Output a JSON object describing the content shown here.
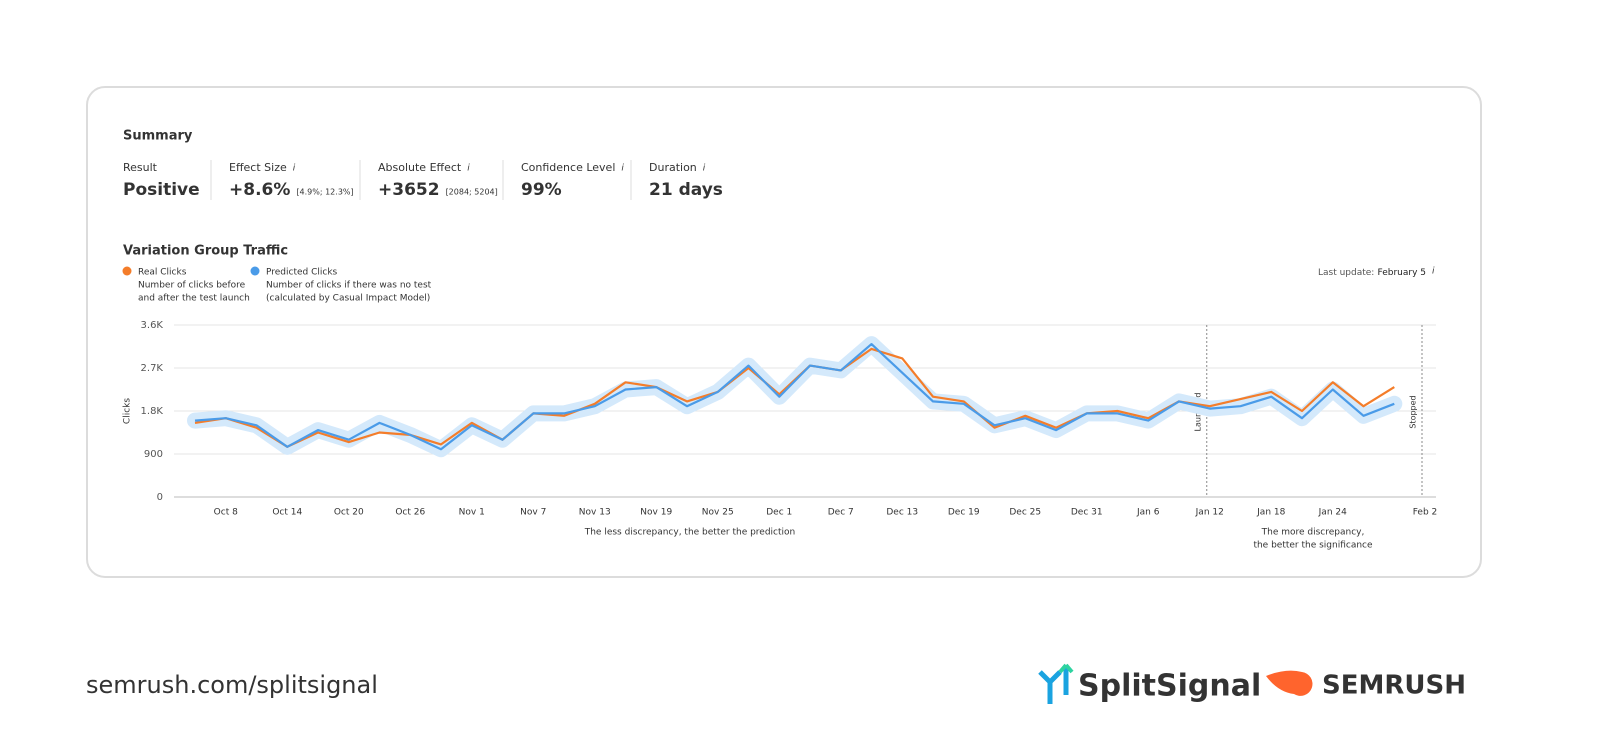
{
  "summary": {
    "title": "Summary",
    "metrics": [
      {
        "label": "Result",
        "value": "Positive"
      },
      {
        "label": "Effect Size",
        "value": "+8.6%",
        "range": "[4.9%; 12.3%]"
      },
      {
        "label": "Absolute Effect",
        "value": "+3652",
        "range": "[2084; 5204]"
      },
      {
        "label": "Confidence Level",
        "value": "99%"
      },
      {
        "label": "Duration",
        "value": "21 days"
      }
    ]
  },
  "last_update": {
    "label": "Last update:",
    "value": "February 5"
  },
  "chart_data": {
    "type": "line",
    "title": "Variation Group Traffic",
    "y_label": "Clicks",
    "categories": [
      null,
      "Oct 8",
      null,
      "Oct 14",
      null,
      "Oct 20",
      null,
      "Oct 26",
      null,
      "Nov 1",
      null,
      "Nov 7",
      null,
      "Nov 13",
      null,
      "Nov 19",
      null,
      "Nov 25",
      null,
      "Dec 1",
      null,
      "Dec 7",
      null,
      "Dec 13",
      null,
      "Dec 19",
      null,
      "Dec 25",
      null,
      "Dec 31",
      null,
      "Jan 6",
      null,
      "Jan 12",
      null,
      "Jan 18",
      null,
      "Jan 24",
      null,
      null,
      "Feb 2"
    ],
    "series": [
      {
        "name": "Real Clicks",
        "description": [
          "Number of clicks before",
          "and after the test launch"
        ],
        "color": "#f47d2a",
        "values": [
          1550,
          1650,
          1450,
          1050,
          1350,
          1150,
          1350,
          1300,
          1100,
          1550,
          1200,
          1750,
          1700,
          1950,
          2400,
          2300,
          2000,
          2200,
          2700,
          2150,
          2750,
          2650,
          3100,
          2900,
          2100,
          2000,
          1450,
          1700,
          1450,
          1750,
          1800,
          1650,
          2000,
          1900,
          2050,
          2200,
          1800,
          2400,
          1900,
          2300,
          null
        ]
      },
      {
        "name": "Predicted Clicks",
        "description": [
          "Number of clicks if there was no test",
          "(calculated by Casual Impact Model)"
        ],
        "color": "#4a9be8",
        "values": [
          1600,
          1650,
          1500,
          1050,
          1400,
          1200,
          1550,
          1300,
          1000,
          1500,
          1200,
          1750,
          1750,
          1900,
          2250,
          2300,
          1900,
          2200,
          2750,
          2100,
          2750,
          2650,
          3200,
          2600,
          2000,
          1950,
          1500,
          1650,
          1400,
          1750,
          1750,
          1600,
          2000,
          1850,
          1900,
          2100,
          1650,
          2250,
          1700,
          1950,
          null
        ]
      }
    ],
    "ylim": [
      0,
      3600
    ],
    "yticks": [
      0,
      900,
      {
        "value": 1800,
        "label": "1.8K"
      },
      {
        "value": 2700,
        "label": "2.7K"
      },
      {
        "value": 3600,
        "label": "3.6K"
      }
    ],
    "grid": true,
    "annotations": [
      {
        "text": "Launched",
        "at": "Jan 12"
      },
      {
        "text": "Stopped",
        "at": "Feb 2"
      }
    ],
    "notes": [
      {
        "lines": [
          "The less discrepancy, the better the prediction"
        ]
      },
      {
        "lines": [
          "The more discrepancy,",
          "the better the significance"
        ]
      }
    ]
  },
  "footer": {
    "url": "semrush.com/splitsignal",
    "brand1": "SplitSignal",
    "brand2": "SEMRUSH"
  }
}
